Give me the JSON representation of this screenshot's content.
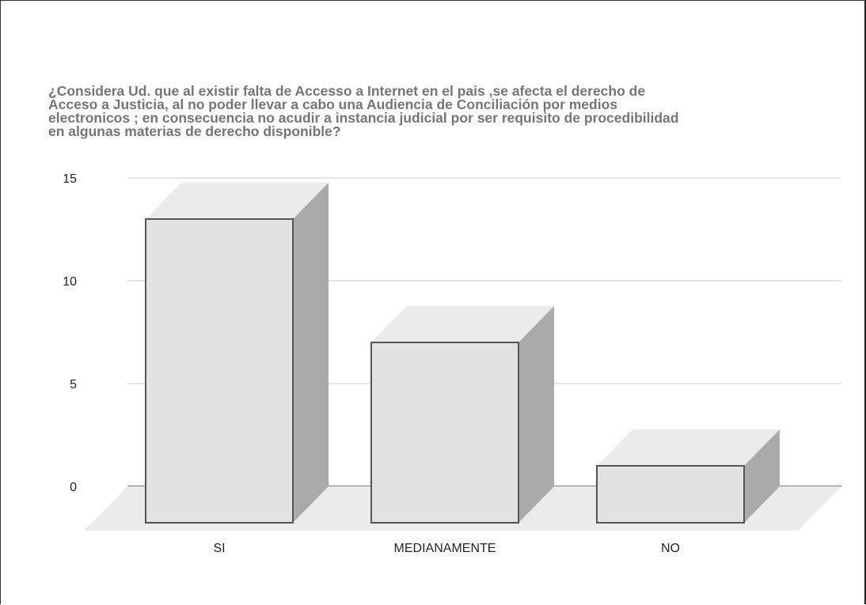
{
  "chart_data": {
    "type": "bar",
    "title_lines": [
      "¿Considera Ud. que al existir falta de Accesso a Internet en el pais ,se afecta el derecho de",
      "Acceso a Justicia, al no poder llevar a cabo una Audiencia de Conciliación por medios",
      "electronicos ; en consecuencia no acudir a instancia judicial por ser requisito de procedibilidad",
      "en algunas materias de derecho disponible?"
    ],
    "categories": [
      "SI",
      "MEDIANAMENTE",
      "NO"
    ],
    "values": [
      13,
      7,
      1
    ],
    "ylim": [
      0,
      15
    ],
    "yticks": [
      "0",
      "5",
      "10",
      "15"
    ],
    "grid": true,
    "legend": "none",
    "colors": {
      "front": "#e2e2e2",
      "top": "#ebebeb",
      "side": "#aaaaaa",
      "floor": "#ebebeb",
      "grid": "#cccccc",
      "edge": "#555555"
    }
  }
}
